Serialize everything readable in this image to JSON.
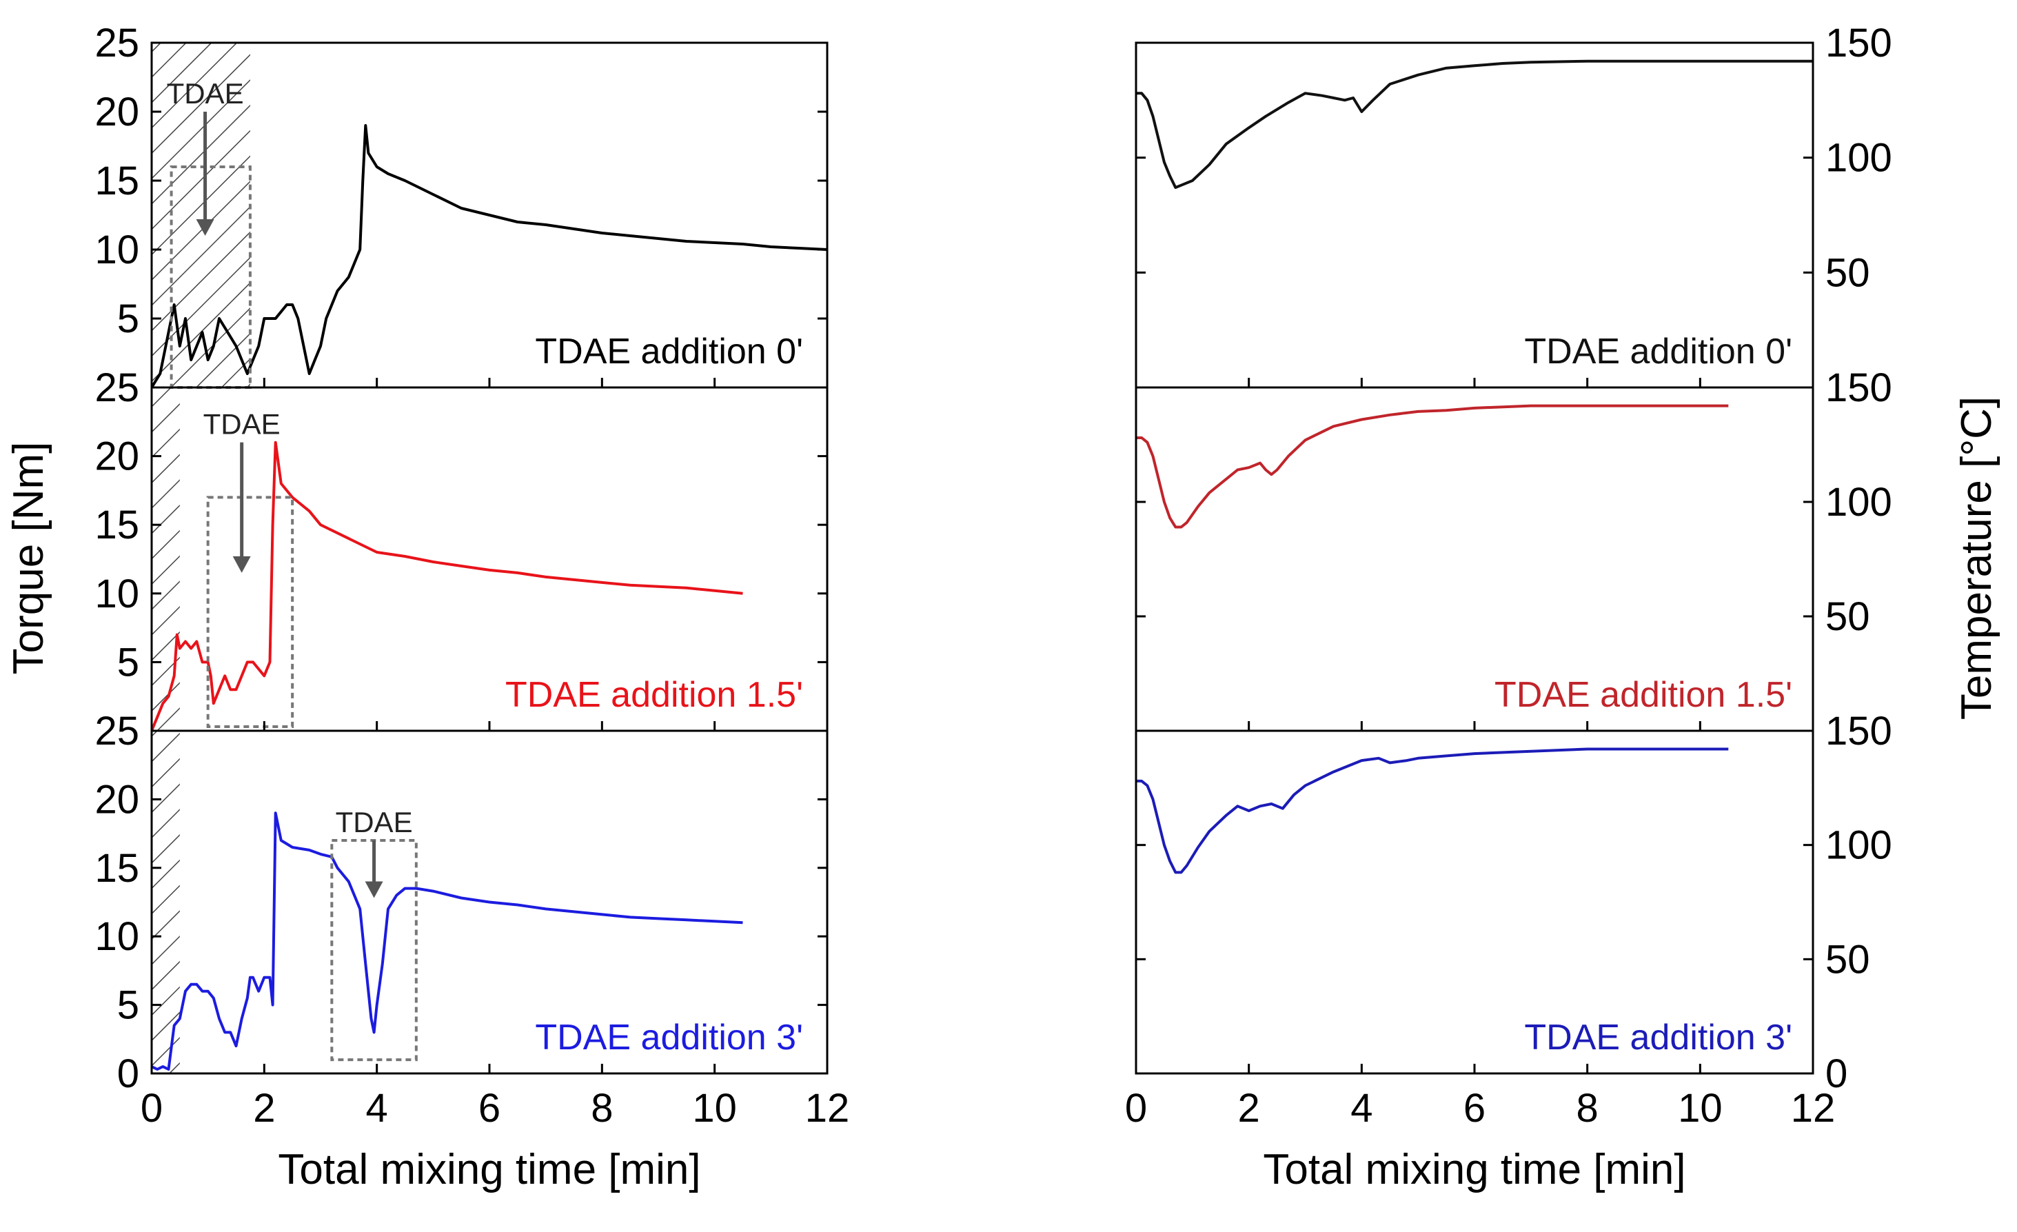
{
  "chart_data": [
    {
      "type": "line",
      "xlabel": "Total mixing time [min]",
      "ylabel": "Torque [Nm]",
      "xlim": [
        0,
        12
      ],
      "x_ticks": [
        "0",
        "2",
        "4",
        "6",
        "8",
        "10",
        "12"
      ],
      "panels": [
        {
          "annotation": "TDAE addition 0'",
          "arrow_label": "TDAE",
          "color": "#000000",
          "ylim": [
            0,
            25
          ],
          "y_ticks": [
            "25",
            "20",
            "15",
            "10",
            "5"
          ],
          "y_tick_values": [
            25,
            20,
            15,
            10,
            5
          ],
          "hatch_x": [
            0,
            1.75
          ],
          "box_x": [
            0.35,
            1.75
          ],
          "box_y": [
            0,
            16
          ],
          "arrow_x": 0.95,
          "arrow_y": [
            20,
            11
          ],
          "series": [
            {
              "x": [
                0,
                0.15,
                0.3,
                0.4,
                0.5,
                0.6,
                0.7,
                0.9,
                1.0,
                1.1,
                1.2,
                1.35,
                1.5,
                1.7,
                1.8,
                1.9,
                2.0,
                2.2,
                2.4,
                2.5,
                2.6,
                2.7,
                2.8,
                2.9,
                3.0,
                3.1,
                3.3,
                3.5,
                3.6,
                3.7,
                3.75,
                3.8,
                3.85,
                4.0,
                4.2,
                4.5,
                5.0,
                5.5,
                6.0,
                6.5,
                7.0,
                7.5,
                8.0,
                8.5,
                9.0,
                9.5,
                10.0,
                10.5,
                11.0,
                11.5,
                12.0
              ],
              "y": [
                0,
                1,
                4,
                6,
                3,
                5,
                2,
                4,
                2,
                3,
                5,
                4,
                3,
                1,
                2,
                3,
                5,
                5,
                6,
                6,
                5,
                3,
                1,
                2,
                3,
                5,
                7,
                8,
                9,
                10,
                15,
                19,
                17,
                16,
                15.5,
                15,
                14,
                13,
                12.5,
                12,
                11.8,
                11.5,
                11.2,
                11,
                10.8,
                10.6,
                10.5,
                10.4,
                10.2,
                10.1,
                10
              ]
            }
          ]
        },
        {
          "annotation": "TDAE addition 1.5'",
          "arrow_label": "TDAE",
          "color": "#e8131a",
          "ylim": [
            0,
            25
          ],
          "y_ticks": [
            "25",
            "20",
            "15",
            "10",
            "5"
          ],
          "y_tick_values": [
            25,
            20,
            15,
            10,
            5
          ],
          "hatch_x": [
            0,
            0.5
          ],
          "box_x": [
            1.0,
            2.5
          ],
          "box_y": [
            0.3,
            17
          ],
          "arrow_x": 1.6,
          "arrow_y": [
            21,
            11.5
          ],
          "series": [
            {
              "x": [
                0,
                0.1,
                0.2,
                0.3,
                0.4,
                0.45,
                0.5,
                0.6,
                0.7,
                0.8,
                0.9,
                1.0,
                1.05,
                1.1,
                1.2,
                1.3,
                1.4,
                1.5,
                1.6,
                1.7,
                1.8,
                1.9,
                2.0,
                2.1,
                2.15,
                2.2,
                2.3,
                2.5,
                2.8,
                3.0,
                3.5,
                4.0,
                4.5,
                5.0,
                5.5,
                6.0,
                6.5,
                7.0,
                7.5,
                8.0,
                8.5,
                9.0,
                9.5,
                10.0,
                10.5
              ],
              "y": [
                0,
                1,
                2,
                2.5,
                4,
                7,
                6,
                6.5,
                6,
                6.5,
                5,
                5,
                4,
                2,
                3,
                4,
                3,
                3,
                4,
                5,
                5,
                4.5,
                4,
                5,
                15,
                21,
                18,
                17,
                16,
                15,
                14,
                13,
                12.7,
                12.3,
                12,
                11.7,
                11.5,
                11.2,
                11,
                10.8,
                10.6,
                10.5,
                10.4,
                10.2,
                10
              ]
            }
          ]
        },
        {
          "annotation": "TDAE addition 3'",
          "arrow_label": "TDAE",
          "color": "#1c1ce0",
          "ylim": [
            0,
            25
          ],
          "y_ticks": [
            "25",
            "20",
            "15",
            "10",
            "5",
            "0"
          ],
          "y_tick_values": [
            25,
            20,
            15,
            10,
            5,
            0
          ],
          "hatch_x": [
            0,
            0.5
          ],
          "box_x": [
            3.2,
            4.7
          ],
          "box_y": [
            1,
            17
          ],
          "arrow_x": 3.95,
          "arrow_y": [
            17,
            12.8
          ],
          "series": [
            {
              "x": [
                0,
                0.1,
                0.2,
                0.3,
                0.4,
                0.5,
                0.6,
                0.7,
                0.8,
                0.9,
                1.0,
                1.1,
                1.2,
                1.3,
                1.4,
                1.5,
                1.6,
                1.7,
                1.75,
                1.8,
                1.9,
                2.0,
                2.1,
                2.15,
                2.2,
                2.3,
                2.5,
                2.8,
                3.0,
                3.2,
                3.3,
                3.5,
                3.7,
                3.8,
                3.9,
                3.95,
                4.0,
                4.1,
                4.2,
                4.35,
                4.5,
                4.7,
                5.0,
                5.5,
                6.0,
                6.5,
                7.0,
                7.5,
                8.0,
                8.5,
                9.0,
                9.5,
                10.0,
                10.5
              ],
              "y": [
                0.5,
                0.3,
                0.5,
                0.3,
                3.5,
                4,
                6,
                6.5,
                6.5,
                6,
                6,
                5.5,
                4,
                3,
                3,
                2,
                4,
                5.5,
                7,
                7,
                6,
                7,
                7,
                5,
                19,
                17,
                16.5,
                16.3,
                16,
                15.8,
                15,
                14,
                12,
                8,
                4,
                3,
                5,
                8,
                12,
                13,
                13.5,
                13.5,
                13.3,
                12.8,
                12.5,
                12.3,
                12,
                11.8,
                11.6,
                11.4,
                11.3,
                11.2,
                11.1,
                11
              ]
            }
          ]
        }
      ]
    },
    {
      "type": "line",
      "xlabel": "Total mixing time [min]",
      "ylabel": "Temperature [°C]",
      "xlim": [
        0,
        12
      ],
      "x_ticks": [
        "0",
        "2",
        "4",
        "6",
        "8",
        "10",
        "12"
      ],
      "panels": [
        {
          "annotation": "TDAE addition 0'",
          "color": "#111111",
          "ylim": [
            0,
            150
          ],
          "y_ticks": [
            "150",
            "100",
            "50"
          ],
          "y_tick_values": [
            150,
            100,
            50
          ],
          "series": [
            {
              "x": [
                0,
                0.1,
                0.2,
                0.3,
                0.4,
                0.5,
                0.6,
                0.7,
                0.8,
                1.0,
                1.3,
                1.6,
                2.0,
                2.3,
                2.7,
                3.0,
                3.3,
                3.5,
                3.7,
                3.85,
                4.0,
                4.2,
                4.5,
                5.0,
                5.5,
                6.0,
                6.5,
                7.0,
                8.0,
                9.0,
                10.0,
                11.0,
                12.0
              ],
              "y": [
                128,
                128,
                125,
                118,
                108,
                98,
                92,
                87,
                88,
                90,
                97,
                106,
                113,
                118,
                124,
                128,
                127,
                126,
                125,
                126,
                120,
                125,
                132,
                136,
                139,
                140,
                141,
                141.5,
                142,
                142,
                142,
                142,
                142
              ]
            }
          ]
        },
        {
          "annotation": "TDAE  addition 1.5'",
          "color": "#c0252b",
          "ylim": [
            0,
            150
          ],
          "y_ticks": [
            "150",
            "100",
            "50"
          ],
          "y_tick_values": [
            150,
            100,
            50
          ],
          "series": [
            {
              "x": [
                0,
                0.1,
                0.2,
                0.3,
                0.4,
                0.5,
                0.6,
                0.7,
                0.8,
                0.9,
                1.1,
                1.3,
                1.6,
                1.8,
                2.0,
                2.2,
                2.3,
                2.4,
                2.5,
                2.7,
                3.0,
                3.5,
                4.0,
                4.5,
                5.0,
                5.5,
                6.0,
                7.0,
                8.0,
                9.0,
                10.0,
                10.5
              ],
              "y": [
                128,
                128,
                126,
                120,
                110,
                100,
                93,
                89,
                89,
                91,
                98,
                104,
                110,
                114,
                115,
                117,
                114,
                112,
                114,
                120,
                127,
                133,
                136,
                138,
                139.5,
                140,
                141,
                142,
                142,
                142,
                142,
                142
              ]
            }
          ]
        },
        {
          "annotation": "TDAE addition 3'",
          "color": "#1c1cb8",
          "ylim": [
            0,
            150
          ],
          "y_ticks": [
            "150",
            "100",
            "50",
            "0"
          ],
          "y_tick_values": [
            150,
            100,
            50,
            0
          ],
          "series": [
            {
              "x": [
                0,
                0.1,
                0.2,
                0.3,
                0.4,
                0.5,
                0.6,
                0.7,
                0.8,
                0.9,
                1.1,
                1.3,
                1.6,
                1.8,
                2.0,
                2.2,
                2.4,
                2.6,
                2.8,
                3.0,
                3.5,
                4.0,
                4.3,
                4.5,
                4.8,
                5.0,
                5.5,
                6.0,
                7.0,
                8.0,
                9.0,
                10.0,
                10.5
              ],
              "y": [
                128,
                128,
                126,
                120,
                110,
                100,
                93,
                88,
                88,
                91,
                99,
                106,
                113,
                117,
                115,
                117,
                118,
                116,
                122,
                126,
                132,
                137,
                138,
                136,
                137,
                138,
                139,
                140,
                141,
                142,
                142,
                142,
                142
              ]
            }
          ]
        }
      ]
    }
  ]
}
